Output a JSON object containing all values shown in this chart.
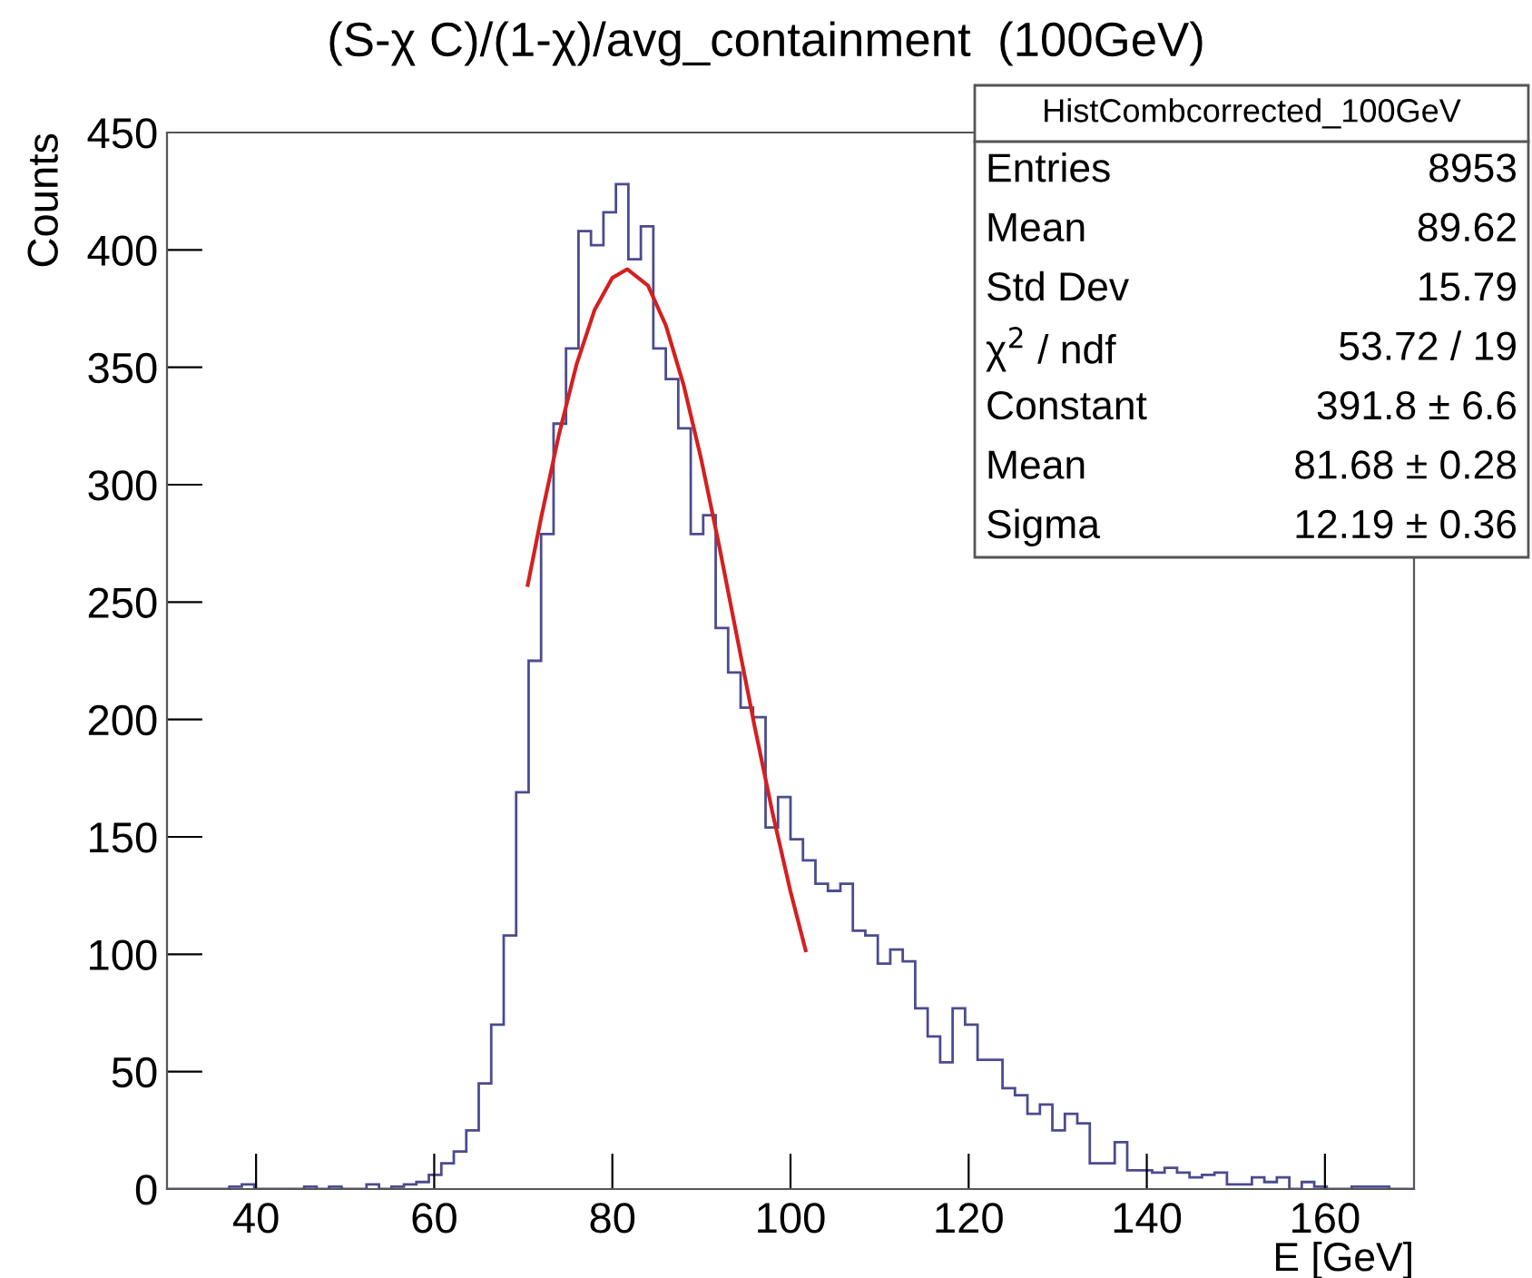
{
  "chart_data": {
    "type": "histogram",
    "title": "(S-χ C)/(1-χ)/avg_containment  (100GeV)",
    "xlabel": "E [GeV]",
    "ylabel": "Counts",
    "bins": [
      30,
      31.4,
      32.8,
      34.2,
      35.6,
      37,
      38.4,
      39.8,
      41.2,
      42.6,
      44,
      45.4,
      46.8,
      48.2,
      49.6,
      51,
      52.4,
      53.8,
      55.2,
      56.6,
      58,
      59.4,
      60.8,
      62.2,
      63.6,
      65,
      66.4,
      67.8,
      69.2,
      70.6,
      72,
      73.4,
      74.8,
      76.2,
      77.6,
      79,
      80.4,
      81.8,
      83.2,
      84.6,
      86,
      87.4,
      88.8,
      90.2,
      91.6,
      93,
      94.4,
      95.8,
      97.2,
      98.6,
      100,
      101.4,
      102.8,
      104.2,
      105.6,
      107,
      108.4,
      109.8,
      111.2,
      112.6,
      114,
      115.4,
      116.8,
      118.2,
      119.6,
      121,
      122.4,
      123.8,
      125.2,
      126.6,
      128,
      129.4,
      130.8,
      132.2,
      133.6,
      135,
      136.4,
      137.8,
      139.2,
      140.6,
      142,
      143.4,
      144.8,
      146.2,
      147.6,
      149,
      150.4,
      151.8,
      153.2,
      154.6,
      156,
      157.4,
      158.8,
      160.2,
      161.6,
      163,
      164.4,
      165.8,
      167.2,
      168.6,
      170
    ],
    "series": [
      {
        "color": "#4b4b8f",
        "values": [
          0,
          0,
          0,
          0,
          0,
          1,
          2,
          0,
          0,
          0,
          0,
          1,
          0,
          1,
          0,
          0,
          2,
          0,
          1,
          2,
          3,
          6,
          11,
          16,
          25,
          45,
          70,
          108,
          169,
          225,
          279,
          326,
          358,
          408,
          402,
          416,
          428,
          396,
          410,
          358,
          345,
          324,
          279,
          287,
          239,
          220,
          205,
          201,
          154,
          167,
          149,
          140,
          130,
          127,
          130,
          110,
          108,
          96,
          102,
          97,
          77,
          65,
          54,
          77,
          70,
          55,
          55,
          43,
          40,
          32,
          36,
          25,
          32,
          28,
          11,
          11,
          20,
          8,
          8,
          7,
          9,
          7,
          5,
          6,
          7,
          2,
          2,
          5,
          3,
          5,
          0,
          3,
          1,
          0,
          0,
          1,
          1,
          1,
          0,
          0
        ]
      },
      {
        "type": "line",
        "color": "#d42020",
        "x": [
          70.5,
          72,
          74,
          76,
          78,
          80,
          81.68,
          84,
          86,
          88,
          90,
          92,
          94,
          96,
          98,
          100,
          101.7
        ],
        "values": [
          257.3,
          285.9,
          321.3,
          351.5,
          374.4,
          388.1,
          391.8,
          384.8,
          367.9,
          342.5,
          310.4,
          273.8,
          235.1,
          196.5,
          159.9,
          126.7,
          101.7
        ]
      }
    ],
    "xlim": [
      30,
      170
    ],
    "xticks": [
      40,
      60,
      80,
      100,
      120,
      140,
      160
    ],
    "ylim": [
      0,
      450
    ],
    "yticks": [
      0,
      50,
      100,
      150,
      200,
      250,
      300,
      350,
      400,
      450
    ],
    "grid": false,
    "legend": false,
    "annotations": [
      "HistCombcorrected_100GeV",
      "Entries",
      "8953",
      "Mean",
      "89.62",
      "Std Dev",
      "15.79",
      "χ$^{2}$ / ndf",
      "53.72 / 19",
      "Constant",
      "391.8 ± 6.6",
      "Mean",
      "81.68 ± 0.28",
      "Sigma",
      "12.19 ± 0.36"
    ]
  }
}
